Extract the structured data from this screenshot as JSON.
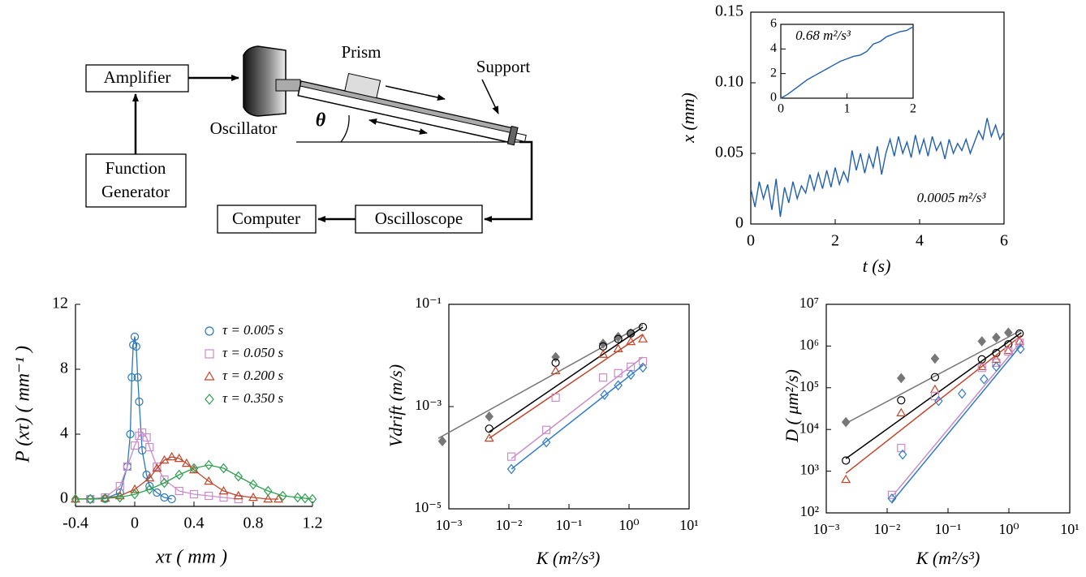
{
  "diagram": {
    "amplifier": "Amplifier",
    "function_generator": [
      "Function",
      "Generator"
    ],
    "oscillator": "Oscillator",
    "prism": "Prism",
    "support": "Support",
    "angle": "θ",
    "computer": "Computer",
    "oscilloscope": "Oscilloscope"
  },
  "chart_data": [
    {
      "type": "line",
      "xlabel": "t (s)",
      "ylabel": "x (mm)",
      "annotation": "0.0005 m²/s³",
      "box": true,
      "color": "#1f5fae",
      "xlim": [
        0,
        6
      ],
      "xticks": [
        0,
        2,
        4,
        6
      ],
      "ylim": [
        0,
        0.15
      ],
      "yticks": [
        0,
        0.05,
        {
          "value": 0.1,
          "label": "0.10"
        },
        0.15
      ],
      "x": [
        0,
        0.1,
        0.2,
        0.3,
        0.4,
        0.5,
        0.6,
        0.7,
        0.8,
        0.9,
        1.0,
        1.1,
        1.2,
        1.3,
        1.4,
        1.5,
        1.6,
        1.7,
        1.8,
        1.9,
        2.0,
        2.1,
        2.2,
        2.3,
        2.4,
        2.5,
        2.6,
        2.7,
        2.8,
        2.9,
        3.0,
        3.1,
        3.2,
        3.3,
        3.4,
        3.5,
        3.6,
        3.7,
        3.8,
        3.9,
        4.0,
        4.1,
        4.2,
        4.3,
        4.4,
        4.5,
        4.6,
        4.7,
        4.8,
        4.9,
        5.0,
        5.1,
        5.2,
        5.3,
        5.4,
        5.5,
        5.6,
        5.7,
        5.8,
        5.9,
        6.0
      ],
      "values": [
        0.025,
        0.012,
        0.03,
        0.018,
        0.028,
        0.01,
        0.032,
        0.005,
        0.026,
        0.015,
        0.03,
        0.018,
        0.027,
        0.022,
        0.035,
        0.024,
        0.036,
        0.025,
        0.038,
        0.026,
        0.04,
        0.028,
        0.037,
        0.03,
        0.052,
        0.038,
        0.05,
        0.036,
        0.049,
        0.04,
        0.055,
        0.035,
        0.05,
        0.06,
        0.048,
        0.062,
        0.05,
        0.058,
        0.047,
        0.063,
        0.05,
        0.06,
        0.048,
        0.062,
        0.052,
        0.058,
        0.046,
        0.06,
        0.05,
        0.057,
        0.052,
        0.06,
        0.05,
        0.058,
        0.066,
        0.06,
        0.075,
        0.062,
        0.07,
        0.06,
        0.065
      ]
    },
    {
      "type": "line",
      "annotation": "0.68 m²/s³",
      "box": true,
      "color": "#1f5fae",
      "xlim": [
        0,
        2
      ],
      "xticks": [
        0,
        1,
        2
      ],
      "ylim": [
        0,
        6
      ],
      "yticks": [
        0,
        2,
        4,
        6
      ],
      "x": [
        0,
        0.1,
        0.2,
        0.3,
        0.4,
        0.5,
        0.6,
        0.7,
        0.8,
        0.9,
        1.0,
        1.1,
        1.2,
        1.3,
        1.4,
        1.5,
        1.6,
        1.7,
        1.8,
        1.9,
        2.0
      ],
      "values": [
        0,
        0.3,
        0.7,
        1.1,
        1.5,
        1.8,
        2.1,
        2.4,
        2.7,
        3.0,
        3.2,
        3.4,
        3.5,
        3.8,
        4.4,
        4.6,
        5.0,
        5.2,
        5.4,
        5.5,
        5.8
      ]
    },
    {
      "type": "scatter",
      "xlabel": "xτ ( mm )",
      "ylabel": "P (xτ) ( mm⁻¹ )",
      "box": false,
      "legend": "upper right",
      "connect": true,
      "xlim": [
        -0.4,
        1.2
      ],
      "xticks": [
        -0.4,
        0,
        0.4,
        0.8,
        1.2
      ],
      "ylim": [
        -0.45,
        12
      ],
      "yticks": [
        0,
        4,
        8,
        12
      ],
      "series": [
        {
          "name": "τ = 0.005 s",
          "color": "#2a78b8",
          "marker": "circle",
          "x": [
            -0.3,
            -0.2,
            -0.1,
            -0.05,
            -0.03,
            -0.02,
            -0.01,
            0,
            0.01,
            0.02,
            0.03,
            0.05,
            0.08,
            0.1,
            0.15,
            0.2,
            0.25
          ],
          "values": [
            0,
            0.02,
            0.4,
            2,
            4,
            7.5,
            9.5,
            10,
            9.4,
            7.5,
            6,
            3,
            1.5,
            0.8,
            0.4,
            0.1,
            0
          ]
        },
        {
          "name": "τ = 0.050 s",
          "color": "#c98cc8",
          "marker": "square",
          "x": [
            -0.3,
            -0.2,
            -0.1,
            -0.05,
            0,
            0.03,
            0.05,
            0.08,
            0.1,
            0.15,
            0.2,
            0.3,
            0.4,
            0.5,
            0.6,
            0.7
          ],
          "values": [
            0,
            0.1,
            0.8,
            2,
            3.3,
            3.9,
            4.1,
            3.8,
            3.2,
            2.0,
            1.2,
            0.5,
            0.3,
            0.2,
            0.1,
            0
          ]
        },
        {
          "name": "τ = 0.200 s",
          "color": "#c0452a",
          "marker": "triangle",
          "x": [
            -0.4,
            -0.2,
            -0.1,
            0,
            0.1,
            0.15,
            0.2,
            0.25,
            0.3,
            0.35,
            0.4,
            0.5,
            0.6,
            0.7,
            0.8,
            0.9,
            0.97
          ],
          "values": [
            0,
            0.05,
            0.2,
            0.6,
            1.3,
            1.9,
            2.4,
            2.6,
            2.5,
            2.2,
            1.8,
            1.1,
            0.5,
            0.2,
            0.1,
            0,
            0
          ]
        },
        {
          "name": "τ = 0.350 s",
          "color": "#2ea050",
          "marker": "diamond",
          "x": [
            -0.4,
            -0.3,
            -0.2,
            -0.1,
            0,
            0.1,
            0.2,
            0.3,
            0.4,
            0.5,
            0.6,
            0.7,
            0.8,
            0.9,
            1.0,
            1.1,
            1.15,
            1.2
          ],
          "values": [
            0,
            0,
            0.05,
            0.1,
            0.3,
            0.6,
            1.0,
            1.5,
            1.9,
            2.1,
            1.9,
            1.4,
            0.9,
            0.5,
            0.2,
            0.1,
            0.05,
            0
          ]
        }
      ]
    },
    {
      "type": "scatter",
      "xlabel": "K (m²/s³)",
      "ylabel": "Vdrift (m/s)",
      "box": true,
      "log_x": true,
      "log_y": true,
      "xlim": [
        0.001,
        10
      ],
      "xticks": [
        {
          "value": 0.001,
          "label": "10⁻³"
        },
        {
          "value": 0.01,
          "label": "10⁻²"
        },
        {
          "value": 0.1,
          "label": "10⁻¹"
        },
        {
          "value": 1,
          "label": "10⁰"
        },
        {
          "value": 10,
          "label": "10¹"
        }
      ],
      "ylim": [
        1e-05,
        0.1
      ],
      "yticks": [
        {
          "value": 1e-05,
          "label": "10⁻⁵"
        },
        {
          "value": 0.001,
          "label": "10⁻³"
        },
        {
          "value": 0.1,
          "label": "10⁻¹"
        }
      ],
      "series": [
        {
          "color": "#777777",
          "marker": "diamond",
          "filled": true,
          "x": [
            0.00078,
            0.0047,
            0.06,
            0.37,
            0.66,
            1.07
          ],
          "values": [
            0.00021,
            0.00064,
            0.0093,
            0.017,
            0.023,
            0.027
          ],
          "fit": {
            "x": [
              0.00067,
              1.7
            ],
            "values": [
              0.00024,
              0.04
            ]
          }
        },
        {
          "color": "#000000",
          "marker": "circle",
          "x": [
            0.0047,
            0.06,
            0.37,
            0.66,
            1.07,
            1.7
          ],
          "values": [
            0.00037,
            0.0072,
            0.015,
            0.021,
            0.027,
            0.036
          ],
          "fit": {
            "x": [
              0.0047,
              1.7
            ],
            "values": [
              0.00032,
              0.036
            ]
          }
        },
        {
          "color": "#c0452a",
          "marker": "triangle",
          "x": [
            0.0047,
            0.06,
            0.37,
            0.66,
            1.07,
            1.7
          ],
          "values": [
            0.00024,
            0.005,
            0.0105,
            0.0135,
            0.0186,
            0.021
          ],
          "fit": {
            "x": [
              0.0047,
              1.7
            ],
            "values": [
              0.00024,
              0.026
            ]
          }
        },
        {
          "color": "#c98cc8",
          "marker": "square",
          "x": [
            0.011,
            0.042,
            0.06,
            0.37,
            0.66,
            1.07,
            1.7
          ],
          "values": [
            0.000105,
            0.00035,
            0.0015,
            0.0037,
            0.0045,
            0.006,
            0.0077
          ],
          "fit": {
            "x": [
              0.011,
              1.7
            ],
            "values": [
              9.6e-05,
              0.0093
            ]
          }
        },
        {
          "color": "#2f7bc4",
          "marker": "diamond",
          "x": [
            0.011,
            0.042,
            0.39,
            0.66,
            1.07,
            1.7
          ],
          "values": [
            6e-05,
            0.0002,
            0.0017,
            0.0026,
            0.0042,
            0.0058
          ],
          "fit": {
            "x": [
              0.011,
              1.7
            ],
            "values": [
              6e-05,
              0.0064
            ]
          }
        }
      ]
    },
    {
      "type": "scatter",
      "xlabel": "K (m²/s³)",
      "ylabel": "D ( μm²/s)",
      "box": true,
      "log_x": true,
      "log_y": true,
      "xlim": [
        0.001,
        10
      ],
      "xticks": [
        {
          "value": 0.001,
          "label": "10⁻³"
        },
        {
          "value": 0.01,
          "label": "10⁻²"
        },
        {
          "value": 0.1,
          "label": "10⁻¹"
        },
        {
          "value": 1,
          "label": "10⁰"
        },
        {
          "value": 10,
          "label": "10¹"
        }
      ],
      "ylim": [
        100,
        10000000
      ],
      "yticks": [
        {
          "value": 100,
          "label": "10²"
        },
        {
          "value": 1000,
          "label": "10³"
        },
        {
          "value": 10000,
          "label": "10⁴"
        },
        {
          "value": 100000,
          "label": "10⁵"
        },
        {
          "value": 1000000,
          "label": "10⁶"
        },
        {
          "value": 10000000,
          "label": "10⁷"
        }
      ],
      "series": [
        {
          "color": "#777777",
          "marker": "diamond",
          "filled": true,
          "x": [
            0.0021,
            0.017,
            0.061,
            0.36,
            0.62,
            0.98
          ],
          "values": [
            15000,
            170000,
            500000,
            1300000,
            1600000,
            2100000
          ],
          "fit": {
            "x": [
              0.0021,
              1.6
            ],
            "values": [
              14000,
              2400000
            ]
          }
        },
        {
          "color": "#000000",
          "marker": "circle",
          "x": [
            0.0021,
            0.017,
            0.061,
            0.36,
            0.62,
            0.98,
            1.5
          ],
          "values": [
            1800,
            50000,
            180000,
            480000,
            680000,
            1100000,
            2000000
          ],
          "fit": {
            "x": [
              0.0021,
              1.6
            ],
            "values": [
              2000,
              2100000
            ]
          }
        },
        {
          "color": "#c0452a",
          "marker": "triangle",
          "x": [
            0.0021,
            0.017,
            0.061,
            0.36,
            0.62,
            0.98,
            1.5
          ],
          "values": [
            630,
            25000,
            91000,
            320000,
            480000,
            780000,
            1300000
          ],
          "fit": {
            "x": [
              0.0021,
              1.6
            ],
            "values": [
              890,
              1800000
            ]
          }
        },
        {
          "color": "#c98cc8",
          "marker": "square",
          "x": [
            0.012,
            0.017,
            0.061,
            0.36,
            0.62,
            0.98,
            1.5
          ],
          "values": [
            270,
            3600,
            63000,
            300000,
            400000,
            740000,
            1200000
          ],
          "fit": {
            "x": [
              0.012,
              1.6
            ],
            "values": [
              245,
              1300000
            ]
          }
        },
        {
          "color": "#2f7bc4",
          "marker": "diamond",
          "x": [
            0.012,
            0.018,
            0.07,
            0.17,
            0.39,
            0.62,
            1.55
          ],
          "values": [
            220,
            2500,
            48000,
            72000,
            160000,
            320000,
            850000
          ],
          "fit": {
            "x": [
              0.012,
              1.6
            ],
            "values": [
              185,
              1070000
            ]
          }
        }
      ]
    }
  ]
}
